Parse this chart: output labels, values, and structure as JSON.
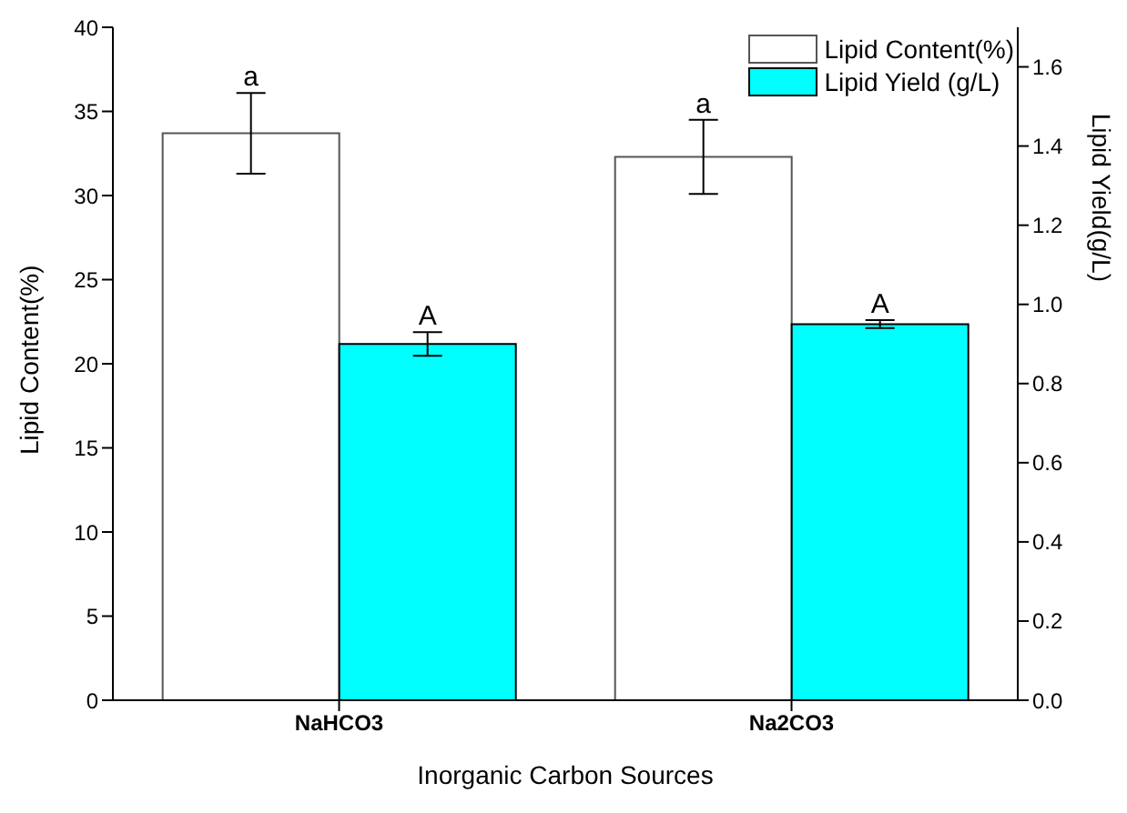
{
  "chart_data": {
    "type": "bar",
    "xlabel": "Inorganic Carbon Sources",
    "ylabel": "Lipid Content(%)",
    "y2label": "Lipid Yield(g/L)",
    "categories": [
      "NaHCO3",
      "Na2CO3"
    ],
    "series": [
      {
        "name": "Lipid Content(%)",
        "color": "#ffffff",
        "values": [
          33.7,
          32.3
        ],
        "errors": [
          2.4,
          2.2
        ]
      },
      {
        "name": "Lipid Yield (g/L)",
        "color": "#00ffff",
        "axis": "y2",
        "values": [
          0.9,
          0.95
        ],
        "errors": [
          0.03,
          0.01
        ]
      }
    ],
    "ylim": [
      0,
      40
    ],
    "yticks": [
      0,
      5,
      10,
      15,
      20,
      25,
      30,
      35,
      40
    ],
    "y2lim": [
      0,
      1.7
    ],
    "y2ticks": [
      {
        "value": 0,
        "label": "0.0"
      },
      {
        "value": 0.2,
        "label": "0.2"
      },
      {
        "value": 0.4,
        "label": "0.4"
      },
      {
        "value": 0.6,
        "label": "0.6"
      },
      {
        "value": 0.8,
        "label": "0.8"
      },
      {
        "value": 1,
        "label": "1.0"
      },
      {
        "value": 1.2,
        "label": "1.2"
      },
      {
        "value": 1.4,
        "label": "1.4"
      },
      {
        "value": 1.6,
        "label": "1.6"
      }
    ],
    "annotations": [
      "a",
      "A",
      "a",
      "A"
    ],
    "grid": false,
    "legend": "top right"
  }
}
